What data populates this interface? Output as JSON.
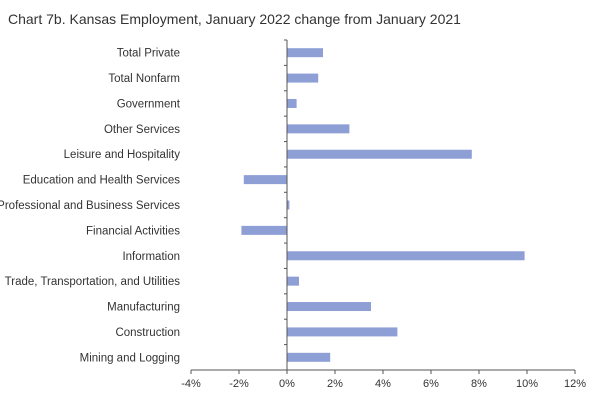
{
  "chart_data": {
    "type": "bar",
    "orientation": "horizontal",
    "title": "Chart 7b. Kansas Employment, January 2022 change from January 2021",
    "xlabel": "",
    "ylabel": "",
    "categories": [
      "Total Private",
      "Total Nonfarm",
      "Government",
      "Other Services",
      "Leisure and Hospitality",
      "Education and Health Services",
      "Professional and Business Services",
      "Financial Activities",
      "Information",
      "Trade, Transportation, and Utilities",
      "Manufacturing",
      "Construction",
      "Mining and Logging"
    ],
    "values": [
      1.5,
      1.3,
      0.4,
      2.6,
      7.7,
      -1.8,
      0.1,
      -1.9,
      9.9,
      0.5,
      3.5,
      4.6,
      1.8
    ],
    "xlim": [
      -4,
      12
    ],
    "xticks": [
      -4,
      -2,
      0,
      2,
      4,
      6,
      8,
      10,
      12
    ],
    "xtick_labels": [
      "-4%",
      "-2%",
      "0%",
      "2%",
      "4%",
      "6%",
      "8%",
      "10%",
      "12%"
    ],
    "bar_color": "#8e9fd6",
    "axis_color": "#555555",
    "grid": false,
    "legend": "none"
  }
}
